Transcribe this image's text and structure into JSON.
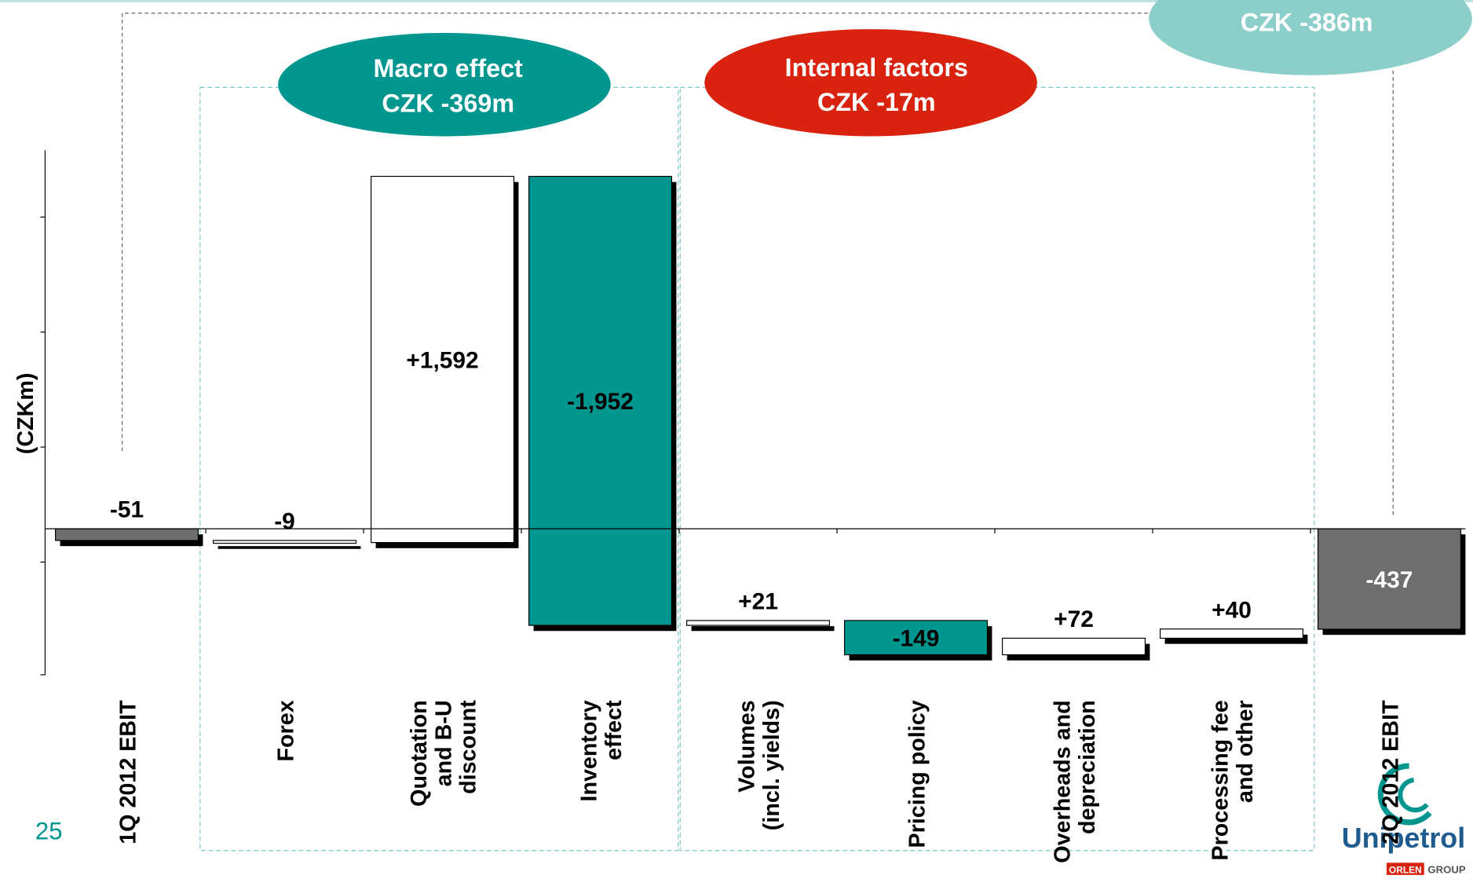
{
  "chart_data": {
    "type": "waterfall",
    "y_label": "(CZKm)",
    "categories": [
      "1Q 2012 EBIT",
      "Forex",
      "Quotation\nand B-U\ndiscount",
      "Inventory\neffect",
      "Volumes\n(incl. yields)",
      "Pricing policy",
      "Overheads and\ndepreciation",
      "Processing fee\nand other",
      "2Q 2012 EBIT"
    ],
    "values": [
      -51,
      -9,
      1592,
      -1952,
      21,
      -149,
      72,
      40,
      -437
    ],
    "value_labels": [
      "-51",
      "-9",
      "+1,592",
      "-1,952",
      "+21",
      "-149",
      "+72",
      "+40",
      "-437"
    ],
    "measures": [
      "absolute",
      "relative",
      "relative",
      "relative",
      "relative",
      "relative",
      "relative",
      "relative",
      "total"
    ],
    "colors": [
      "#6d6e6e",
      "#ffffff",
      "#ffffff",
      "#009690",
      "#ffffff",
      "#009690",
      "#ffffff",
      "#ffffff",
      "#6d6e6e"
    ],
    "ylim": [
      -635,
      1645
    ],
    "yticks": [
      -635,
      -145,
      355,
      855,
      1355
    ],
    "annotations": [
      "Macro effect",
      "CZK -369m",
      "Internal factors",
      "CZK -17m",
      "CZK -386m"
    ]
  },
  "page_number": "25",
  "logo": {
    "name": "Unipetrol",
    "group_brand": "ORLEN",
    "group": "GROUP"
  }
}
